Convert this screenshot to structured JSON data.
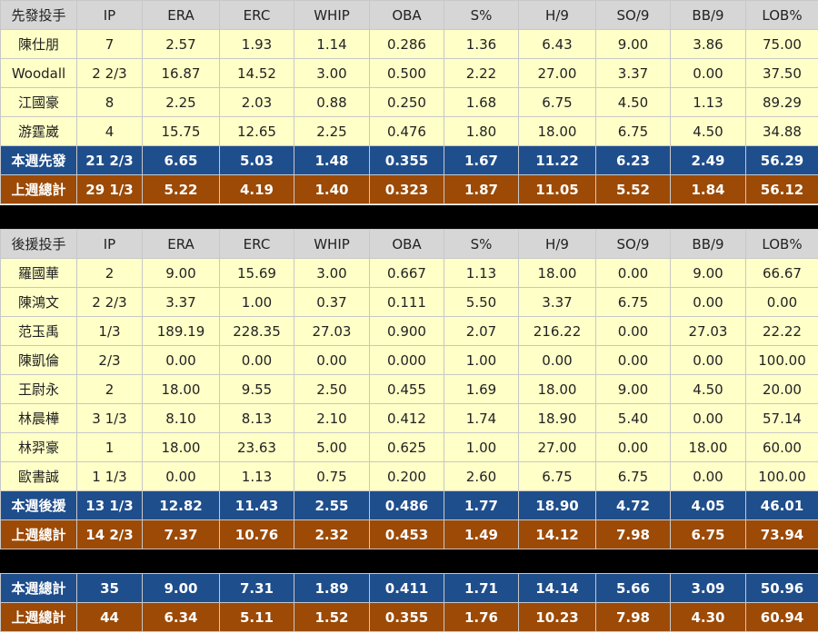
{
  "colors": {
    "header_bg": "#d6d6d6",
    "row_bg": "#ffffc8",
    "week_bg": "#1f4e8c",
    "lastweek_bg": "#9c4a06",
    "separator": "#000000"
  },
  "columns": [
    "IP",
    "ERA",
    "ERC",
    "WHIP",
    "OBA",
    "S%",
    "H/9",
    "SO/9",
    "BB/9",
    "LOB%"
  ],
  "starters": {
    "label": "先發投手",
    "rows": [
      [
        "陳仕朋",
        "7",
        "2.57",
        "1.93",
        "1.14",
        "0.286",
        "1.36",
        "6.43",
        "9.00",
        "3.86",
        "75.00"
      ],
      [
        "Woodall",
        "2 2/3",
        "16.87",
        "14.52",
        "3.00",
        "0.500",
        "2.22",
        "27.00",
        "3.37",
        "0.00",
        "37.50"
      ],
      [
        "江國豪",
        "8",
        "2.25",
        "2.03",
        "0.88",
        "0.250",
        "1.68",
        "6.75",
        "4.50",
        "1.13",
        "89.29"
      ],
      [
        "游霆崴",
        "4",
        "15.75",
        "12.65",
        "2.25",
        "0.476",
        "1.80",
        "18.00",
        "6.75",
        "4.50",
        "34.88"
      ]
    ],
    "week_total": [
      "本週先發",
      "21 2/3",
      "6.65",
      "5.03",
      "1.48",
      "0.355",
      "1.67",
      "11.22",
      "6.23",
      "2.49",
      "56.29"
    ],
    "last_week_total": [
      "上週總計",
      "29 1/3",
      "5.22",
      "4.19",
      "1.40",
      "0.323",
      "1.87",
      "11.05",
      "5.52",
      "1.84",
      "56.12"
    ]
  },
  "relievers": {
    "label": "後援投手",
    "rows": [
      [
        "羅國華",
        "2",
        "9.00",
        "15.69",
        "3.00",
        "0.667",
        "1.13",
        "18.00",
        "0.00",
        "9.00",
        "66.67"
      ],
      [
        "陳鴻文",
        "2 2/3",
        "3.37",
        "1.00",
        "0.37",
        "0.111",
        "5.50",
        "3.37",
        "6.75",
        "0.00",
        "0.00"
      ],
      [
        "范玉禹",
        "1/3",
        "189.19",
        "228.35",
        "27.03",
        "0.900",
        "2.07",
        "216.22",
        "0.00",
        "27.03",
        "22.22"
      ],
      [
        "陳凱倫",
        "2/3",
        "0.00",
        "0.00",
        "0.00",
        "0.000",
        "1.00",
        "0.00",
        "0.00",
        "0.00",
        "100.00"
      ],
      [
        "王尉永",
        "2",
        "18.00",
        "9.55",
        "2.50",
        "0.455",
        "1.69",
        "18.00",
        "9.00",
        "4.50",
        "20.00"
      ],
      [
        "林晨樺",
        "3 1/3",
        "8.10",
        "8.13",
        "2.10",
        "0.412",
        "1.74",
        "18.90",
        "5.40",
        "0.00",
        "57.14"
      ],
      [
        "林羿豪",
        "1",
        "18.00",
        "23.63",
        "5.00",
        "0.625",
        "1.00",
        "27.00",
        "0.00",
        "18.00",
        "60.00"
      ],
      [
        "歐書誠",
        "1 1/3",
        "0.00",
        "1.13",
        "0.75",
        "0.200",
        "2.60",
        "6.75",
        "6.75",
        "0.00",
        "100.00"
      ]
    ],
    "week_total": [
      "本週後援",
      "13 1/3",
      "12.82",
      "11.43",
      "2.55",
      "0.486",
      "1.77",
      "18.90",
      "4.72",
      "4.05",
      "46.01"
    ],
    "last_week_total": [
      "上週總計",
      "14 2/3",
      "7.37",
      "10.76",
      "2.32",
      "0.453",
      "1.49",
      "14.12",
      "7.98",
      "6.75",
      "73.94"
    ]
  },
  "overall": {
    "week_total": [
      "本週總計",
      "35",
      "9.00",
      "7.31",
      "1.89",
      "0.411",
      "1.71",
      "14.14",
      "5.66",
      "3.09",
      "50.96"
    ],
    "last_week_total": [
      "上週總計",
      "44",
      "6.34",
      "5.11",
      "1.52",
      "0.355",
      "1.76",
      "10.23",
      "7.98",
      "4.30",
      "60.94"
    ]
  }
}
